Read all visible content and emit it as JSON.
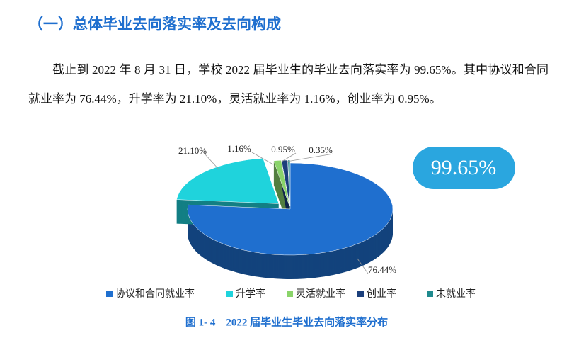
{
  "heading": "（一）总体毕业去向落实率及去向构成",
  "paragraph": "截止到 2022 年 8 月 31 日，学校 2022 届毕业生的毕业去向落实率为 99.65%。其中协议和合同就业率为 76.44%，升学率为 21.10%，灵活就业率为 1.16%，创业率为 0.95%。",
  "highlight": "99.65%",
  "chart_data": {
    "type": "pie",
    "categories": [
      "协议和合同就业率",
      "升学率",
      "灵活就业率",
      "创业率",
      "未就业率"
    ],
    "values": [
      76.44,
      21.1,
      1.16,
      0.95,
      0.35
    ],
    "value_labels": [
      "76.44%",
      "21.10%",
      "1.16%",
      "0.95%",
      "0.35%"
    ],
    "colors": [
      "#1f6fcf",
      "#1fd3dc",
      "#8ad46a",
      "#1b3f7c",
      "#1f8a8e"
    ],
    "legend": "bottom"
  },
  "caption": "图 1- 4　2022 届毕业生毕业去向落实率分布"
}
